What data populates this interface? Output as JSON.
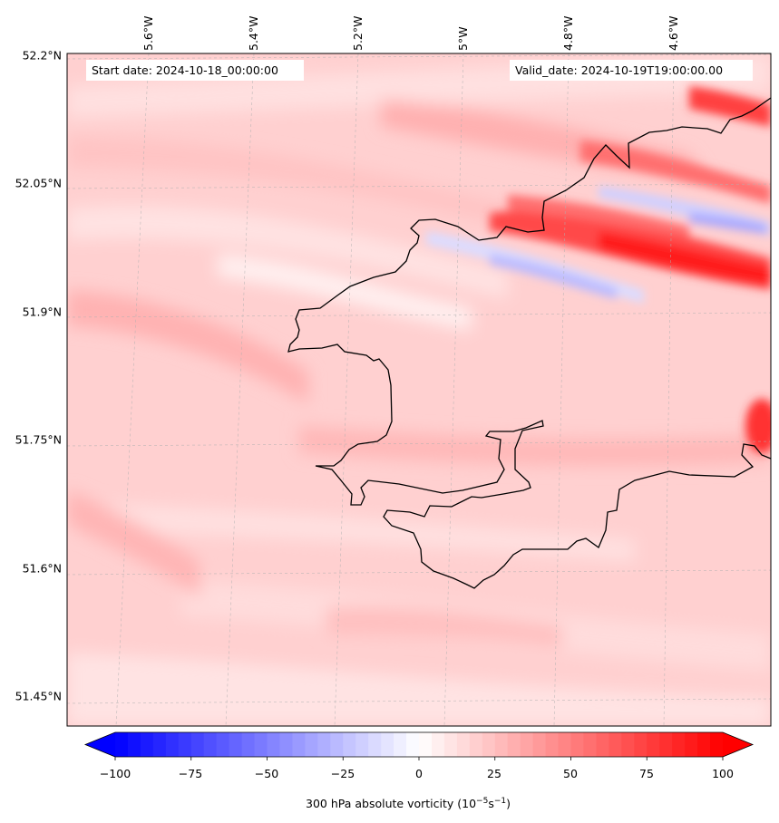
{
  "map": {
    "header": {
      "start_date": "Start date: 2024-10-18_00:00:00",
      "valid_date": "Valid_date: 2024-10-19T19:00:00.00"
    },
    "lat_labels": [
      "52.2°N",
      "52.05°N",
      "51.9°N",
      "51.75°N",
      "51.6°N",
      "51.45°N"
    ],
    "lon_labels": [
      "5.6°W",
      "5.4°W",
      "5.2°W",
      "5°W",
      "4.8°W",
      "4.6°W"
    ],
    "colorbar": {
      "ticks": [
        "−100",
        "−75",
        "−50",
        "−25",
        "0",
        "25",
        "50",
        "75",
        "100"
      ],
      "title": "300 hPa absolute vorticity (10",
      "title_exp1": "−5",
      "title_mid": "s",
      "title_exp2": "−1",
      "title_end": ")",
      "vmin": -100,
      "vmax": 100,
      "levels": 48,
      "colormap": "bwr",
      "extend": "both"
    },
    "colors": {
      "coastline": "#000000",
      "gridline": "#b0b0b0",
      "positive_max": "#ff0000",
      "negative_max": "#0000ff",
      "zero": "#ffffff"
    }
  }
}
